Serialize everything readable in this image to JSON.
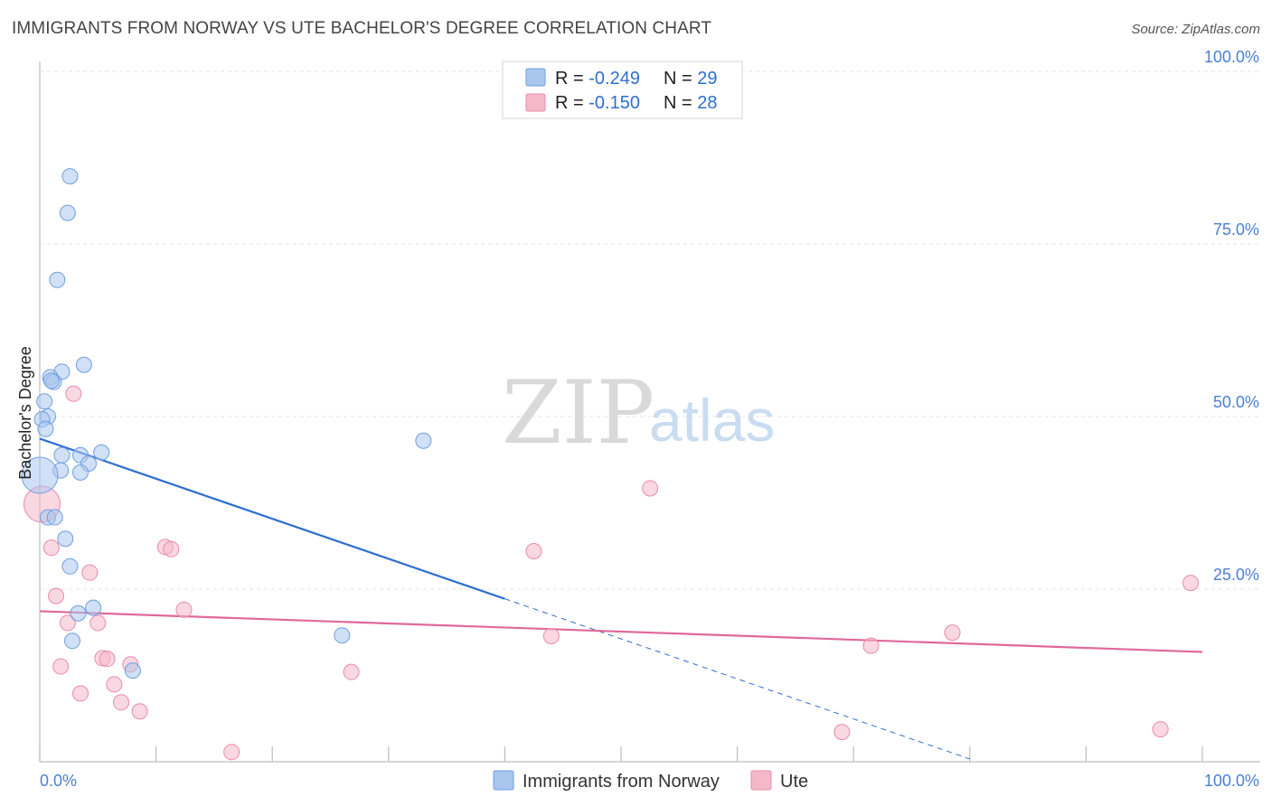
{
  "header": {
    "title": "IMMIGRANTS FROM NORWAY VS UTE BACHELOR'S DEGREE CORRELATION CHART",
    "source": "Source: ZipAtlas.com"
  },
  "watermark": {
    "zip": "ZIP",
    "atlas": "atlas"
  },
  "stats_legend": {
    "rows": [
      {
        "r_label": "R = ",
        "r_value": "-0.249",
        "n_label": "N = ",
        "n_value": "29",
        "color": "#a9c6ef"
      },
      {
        "r_label": "R = ",
        "r_value": "-0.150",
        "n_label": "N = ",
        "n_value": "28",
        "color": "#f5b8cb"
      }
    ]
  },
  "chart_data": {
    "type": "scatter",
    "title": "IMMIGRANTS FROM NORWAY VS UTE BACHELOR'S DEGREE CORRELATION CHART",
    "xlabel": "",
    "ylabel": "Bachelor's Degree",
    "xlim": [
      0,
      100
    ],
    "ylim": [
      0,
      100
    ],
    "x_tick_labels": [
      "0.0%",
      "100.0%"
    ],
    "y_ticks": [
      {
        "value": 100,
        "label": "100.0%"
      },
      {
        "value": 75,
        "label": "75.0%"
      },
      {
        "value": 50,
        "label": "50.0%"
      },
      {
        "value": 25,
        "label": "25.0%"
      }
    ],
    "grid": true,
    "legend_position": "bottom-center",
    "series": [
      {
        "name": "Immigrants from Norway",
        "color": "#a9c6ef",
        "stroke": "#6f9fe0",
        "trend_color": "#2f6fd0",
        "trend": {
          "x0": 0,
          "y0": 46.8,
          "x1": 40,
          "y1": 23.6,
          "dashed_to_x": 80,
          "dashed_to_y": 0.4
        },
        "points": [
          {
            "x": 2.6,
            "y": 84.8
          },
          {
            "x": 2.4,
            "y": 79.5
          },
          {
            "x": 1.5,
            "y": 69.8
          },
          {
            "x": 3.8,
            "y": 57.5
          },
          {
            "x": 1.9,
            "y": 56.5
          },
          {
            "x": 0.9,
            "y": 55.7
          },
          {
            "x": 1.2,
            "y": 55.0
          },
          {
            "x": 1.0,
            "y": 55.2
          },
          {
            "x": 0.4,
            "y": 52.2
          },
          {
            "x": 0.7,
            "y": 50.0
          },
          {
            "x": 0.2,
            "y": 49.6
          },
          {
            "x": 0.5,
            "y": 48.2
          },
          {
            "x": 33.0,
            "y": 46.5
          },
          {
            "x": 1.9,
            "y": 44.4
          },
          {
            "x": 3.5,
            "y": 44.4
          },
          {
            "x": 5.3,
            "y": 44.8
          },
          {
            "x": 4.2,
            "y": 43.2
          },
          {
            "x": 1.8,
            "y": 42.2
          },
          {
            "x": 3.5,
            "y": 41.9
          },
          {
            "x": 0.0,
            "y": 41.5,
            "size": "large"
          },
          {
            "x": 0.7,
            "y": 35.4
          },
          {
            "x": 1.3,
            "y": 35.4
          },
          {
            "x": 2.2,
            "y": 32.3
          },
          {
            "x": 2.6,
            "y": 28.3
          },
          {
            "x": 4.6,
            "y": 22.3
          },
          {
            "x": 3.3,
            "y": 21.5
          },
          {
            "x": 2.8,
            "y": 17.5
          },
          {
            "x": 26.0,
            "y": 18.3
          },
          {
            "x": 8.0,
            "y": 13.2
          }
        ]
      },
      {
        "name": "Ute",
        "color": "#f5b8cb",
        "stroke": "#eb8aa8",
        "trend_color": "#e0699a",
        "trend": {
          "x0": 0,
          "y0": 21.8,
          "x1": 100,
          "y1": 15.9
        },
        "points": [
          {
            "x": 2.9,
            "y": 53.3
          },
          {
            "x": 0.2,
            "y": 37.3,
            "size": "large"
          },
          {
            "x": 52.5,
            "y": 39.6
          },
          {
            "x": 1.0,
            "y": 31.0
          },
          {
            "x": 10.8,
            "y": 31.1
          },
          {
            "x": 11.3,
            "y": 30.8
          },
          {
            "x": 42.5,
            "y": 30.5
          },
          {
            "x": 4.3,
            "y": 27.4
          },
          {
            "x": 1.4,
            "y": 24.0
          },
          {
            "x": 12.4,
            "y": 22.0
          },
          {
            "x": 2.4,
            "y": 20.1
          },
          {
            "x": 5.0,
            "y": 20.1
          },
          {
            "x": 44.0,
            "y": 18.2
          },
          {
            "x": 78.5,
            "y": 18.7
          },
          {
            "x": 71.5,
            "y": 16.8
          },
          {
            "x": 5.4,
            "y": 15.0
          },
          {
            "x": 5.8,
            "y": 14.9
          },
          {
            "x": 7.8,
            "y": 14.1
          },
          {
            "x": 1.8,
            "y": 13.8
          },
          {
            "x": 26.8,
            "y": 13.0
          },
          {
            "x": 6.4,
            "y": 11.2
          },
          {
            "x": 3.5,
            "y": 9.9
          },
          {
            "x": 7.0,
            "y": 8.6
          },
          {
            "x": 8.6,
            "y": 7.3
          },
          {
            "x": 99.0,
            "y": 25.9
          },
          {
            "x": 69.0,
            "y": 4.3
          },
          {
            "x": 96.4,
            "y": 4.7
          },
          {
            "x": 16.5,
            "y": 1.4
          }
        ]
      }
    ]
  }
}
